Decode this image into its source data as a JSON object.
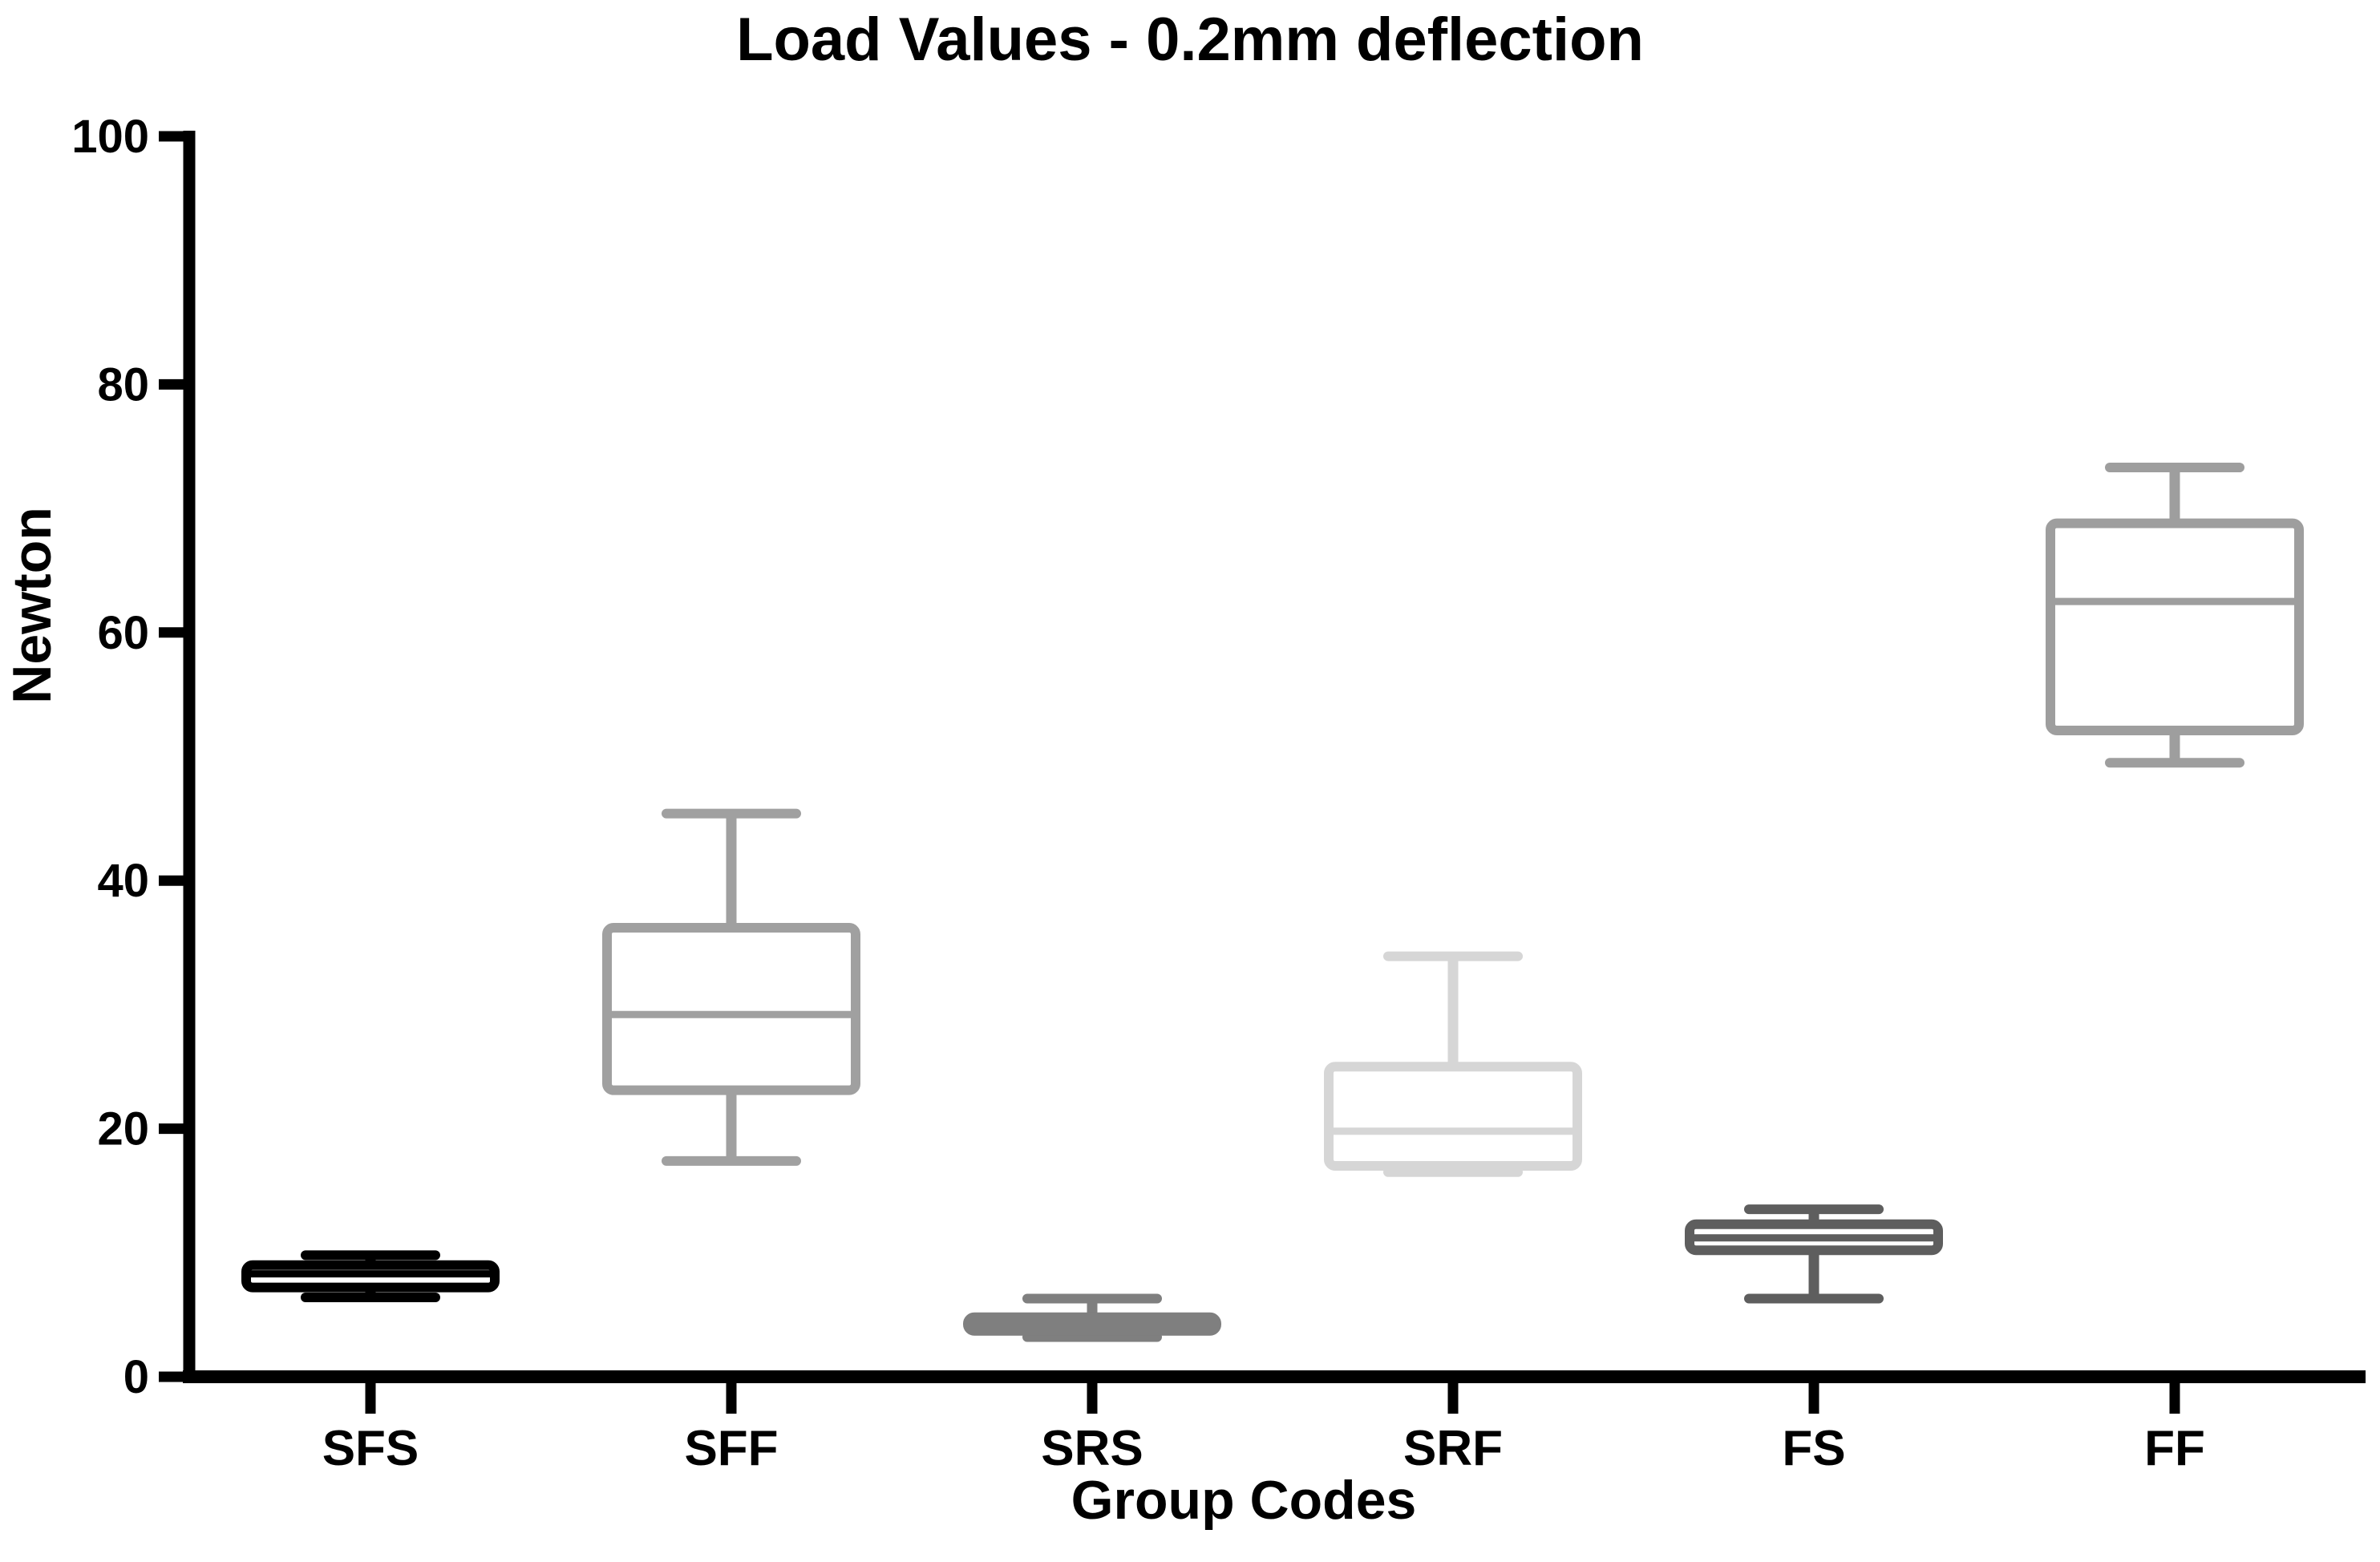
{
  "chart_data": {
    "type": "box",
    "title": "Load Values - 0.2mm deflection",
    "xlabel": "Group Codes",
    "ylabel": "Newton",
    "ylim": [
      0,
      100
    ],
    "y_ticks": [
      0,
      20,
      40,
      60,
      80,
      100
    ],
    "categories": [
      "SFS",
      "SFF",
      "SRS",
      "SRF",
      "FS",
      "FF"
    ],
    "series": [
      {
        "name": "SFS",
        "min": 6.4,
        "q1": 7.2,
        "median": 8.3,
        "q3": 9.0,
        "max": 9.8,
        "color": "#000000"
      },
      {
        "name": "SFF",
        "min": 17.4,
        "q1": 23.1,
        "median": 29.2,
        "q3": 36.2,
        "max": 45.4,
        "color": "#a0a0a0"
      },
      {
        "name": "SRS",
        "min": 3.2,
        "q1": 3.7,
        "median": 4.2,
        "q3": 4.8,
        "max": 6.3,
        "color": "#7f7f7f"
      },
      {
        "name": "SRF",
        "min": 16.5,
        "q1": 17.0,
        "median": 19.8,
        "q3": 25.0,
        "max": 33.9,
        "color": "#d6d6d6"
      },
      {
        "name": "FS",
        "min": 6.3,
        "q1": 10.2,
        "median": 11.2,
        "q3": 12.3,
        "max": 13.5,
        "color": "#5e5e5e"
      },
      {
        "name": "FF",
        "min": 49.5,
        "q1": 52.1,
        "median": 62.5,
        "q3": 68.8,
        "max": 73.3,
        "color": "#9e9e9e"
      }
    ],
    "axis_color": "#000000",
    "box_fill": "#ffffff",
    "grid": false,
    "legend": "none"
  }
}
